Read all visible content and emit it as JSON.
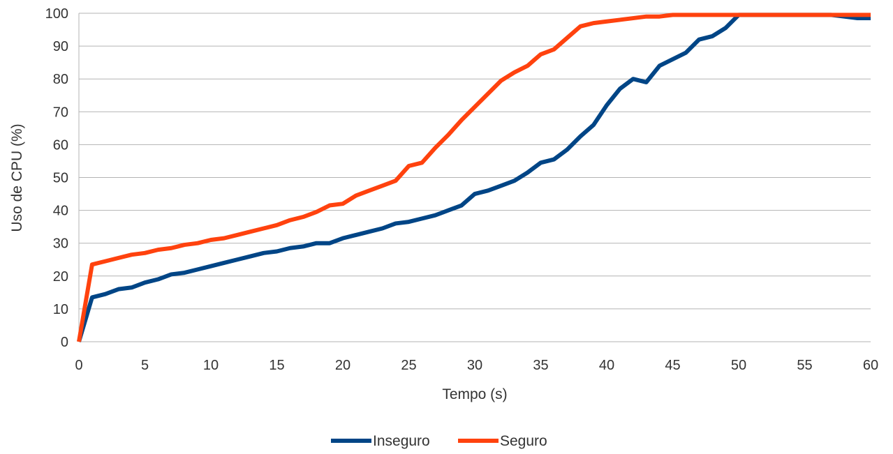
{
  "chart_data": {
    "type": "line",
    "title": "",
    "xlabel": "Tempo (s)",
    "ylabel": "Uso de CPU (%)",
    "xlim": [
      0,
      60
    ],
    "ylim": [
      0,
      100
    ],
    "x_ticks": [
      "0",
      "5",
      "10",
      "15",
      "20",
      "25",
      "30",
      "35",
      "40",
      "45",
      "50",
      "55",
      "60"
    ],
    "y_ticks": [
      "0",
      "10",
      "20",
      "30",
      "40",
      "50",
      "60",
      "70",
      "80",
      "90",
      "100"
    ],
    "grid": true,
    "legend_position": "bottom",
    "x": [
      0,
      1,
      2,
      3,
      4,
      5,
      6,
      7,
      8,
      9,
      10,
      11,
      12,
      13,
      14,
      15,
      16,
      17,
      18,
      19,
      20,
      21,
      22,
      23,
      24,
      25,
      26,
      27,
      28,
      29,
      30,
      31,
      32,
      33,
      34,
      35,
      36,
      37,
      38,
      39,
      40,
      41,
      42,
      43,
      44,
      45,
      46,
      47,
      48,
      49,
      50,
      51,
      52,
      53,
      54,
      55,
      56,
      57,
      58,
      59,
      60
    ],
    "series": [
      {
        "name": "Inseguro",
        "color": "#004586",
        "values": [
          0,
          13.5,
          14.5,
          16,
          16.5,
          18,
          19,
          20.5,
          21,
          22,
          23,
          24,
          25,
          26,
          27,
          27.5,
          28.5,
          29,
          30,
          30,
          31.5,
          32.5,
          33.5,
          34.5,
          36,
          36.5,
          37.5,
          38.5,
          40,
          41.5,
          45,
          46,
          47.5,
          49,
          51.5,
          54.5,
          55.5,
          58.5,
          62.5,
          66,
          72,
          77,
          80,
          79,
          84,
          86,
          88,
          92,
          93,
          95.5,
          99.5,
          99.5,
          99.5,
          99.5,
          99.5,
          99.5,
          99.5,
          99.5,
          99,
          98.5,
          98.5
        ]
      },
      {
        "name": "Seguro",
        "color": "#ff420e",
        "values": [
          0,
          23.5,
          24.5,
          25.5,
          26.5,
          27,
          28,
          28.5,
          29.5,
          30,
          31,
          31.5,
          32.5,
          33.5,
          34.5,
          35.5,
          37,
          38,
          39.5,
          41.5,
          42,
          44.5,
          46,
          47.5,
          49,
          53.5,
          54.5,
          59,
          63,
          67.5,
          71.5,
          75.5,
          79.5,
          82,
          84,
          87.5,
          89,
          92.5,
          96,
          97,
          97.5,
          98,
          98.5,
          99,
          99,
          99.5,
          99.5,
          99.5,
          99.5,
          99.5,
          99.5,
          99.5,
          99.5,
          99.5,
          99.5,
          99.5,
          99.5,
          99.5,
          99.5,
          99.5,
          99.5
        ]
      }
    ]
  }
}
